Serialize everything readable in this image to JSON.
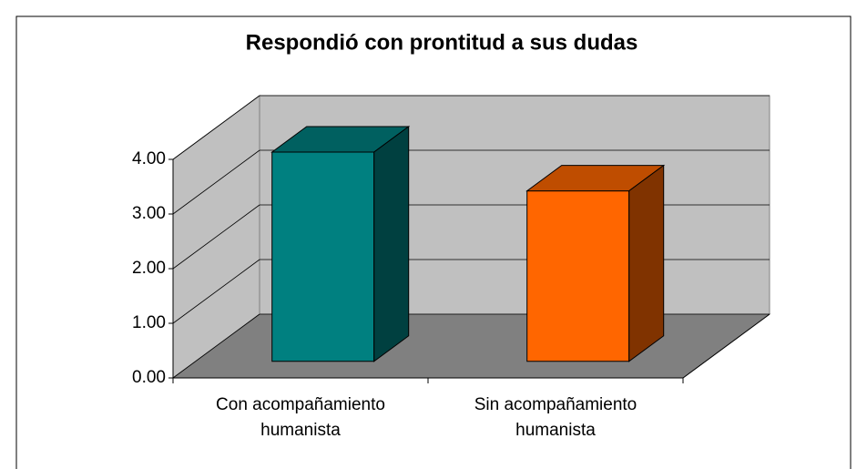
{
  "chart_data": {
    "type": "bar3d",
    "title": "Respondió con prontitud a sus dudas",
    "categories": [
      "Con acompañamiento humanista",
      "Sin acompañamiento humanista"
    ],
    "values": [
      3.83,
      3.12
    ],
    "colors": [
      "#008080",
      "#FF6600"
    ],
    "ylim": [
      0,
      4
    ],
    "yticks": [
      {
        "value": 0,
        "label": "0.00"
      },
      {
        "value": 1,
        "label": "1.00"
      },
      {
        "value": 2,
        "label": "2.00"
      },
      {
        "value": 3,
        "label": "3.00"
      },
      {
        "value": 4,
        "label": "4.00"
      }
    ],
    "grid": true
  }
}
